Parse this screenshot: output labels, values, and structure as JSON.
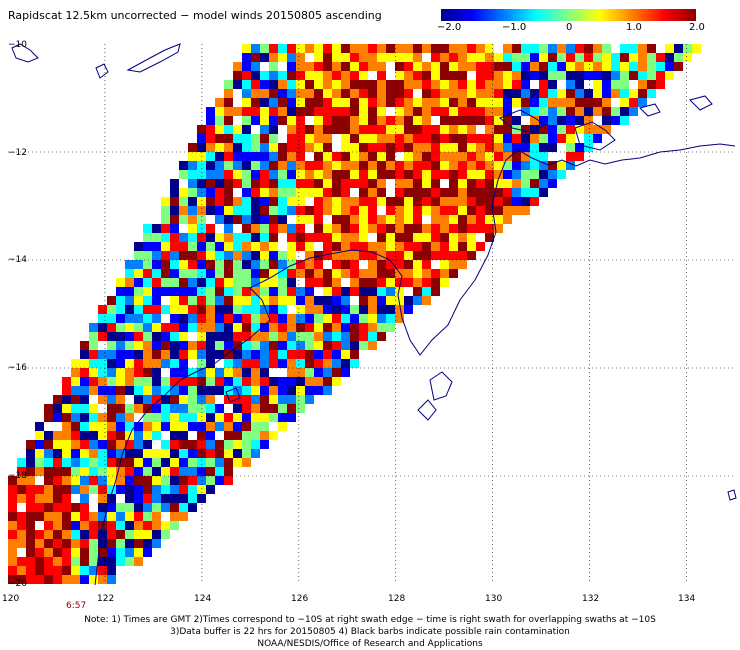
{
  "title": "Rapidscat 12.5km uncorrected − model winds 20150805 ascending",
  "colorbar": {
    "ticks": [
      "−2.0",
      "−1.0",
      "0",
      "1.0",
      "2.0"
    ],
    "range": [
      -2.0,
      2.0
    ],
    "colors": [
      "#00008b",
      "#0000ff",
      "#0080ff",
      "#00ffff",
      "#80ff80",
      "#ffff00",
      "#ff8000",
      "#ff0000",
      "#8b0000"
    ]
  },
  "map": {
    "lon_range": [
      120,
      135
    ],
    "lat_range": [
      -20,
      -10
    ],
    "lon_ticks": [
      "120",
      "122",
      "124",
      "126",
      "128",
      "130",
      "132",
      "134"
    ],
    "lat_ticks": [
      "−10",
      "−12",
      "−14",
      "−16",
      "−18",
      "−20"
    ],
    "grid": true,
    "grid_style": "dotted"
  },
  "swath_time": "6:57",
  "notes": {
    "line1": "Note: 1) Times are GMT 2)Times correspond to −10S at right swath edge − time is right swath for overlapping swaths at −10S",
    "line2": "3)Data buffer is 22 hrs for 20150805 4) Black barbs indicate possible rain contamination",
    "line3": "NOAA/NESDIS/Office of Research and Applications"
  }
}
